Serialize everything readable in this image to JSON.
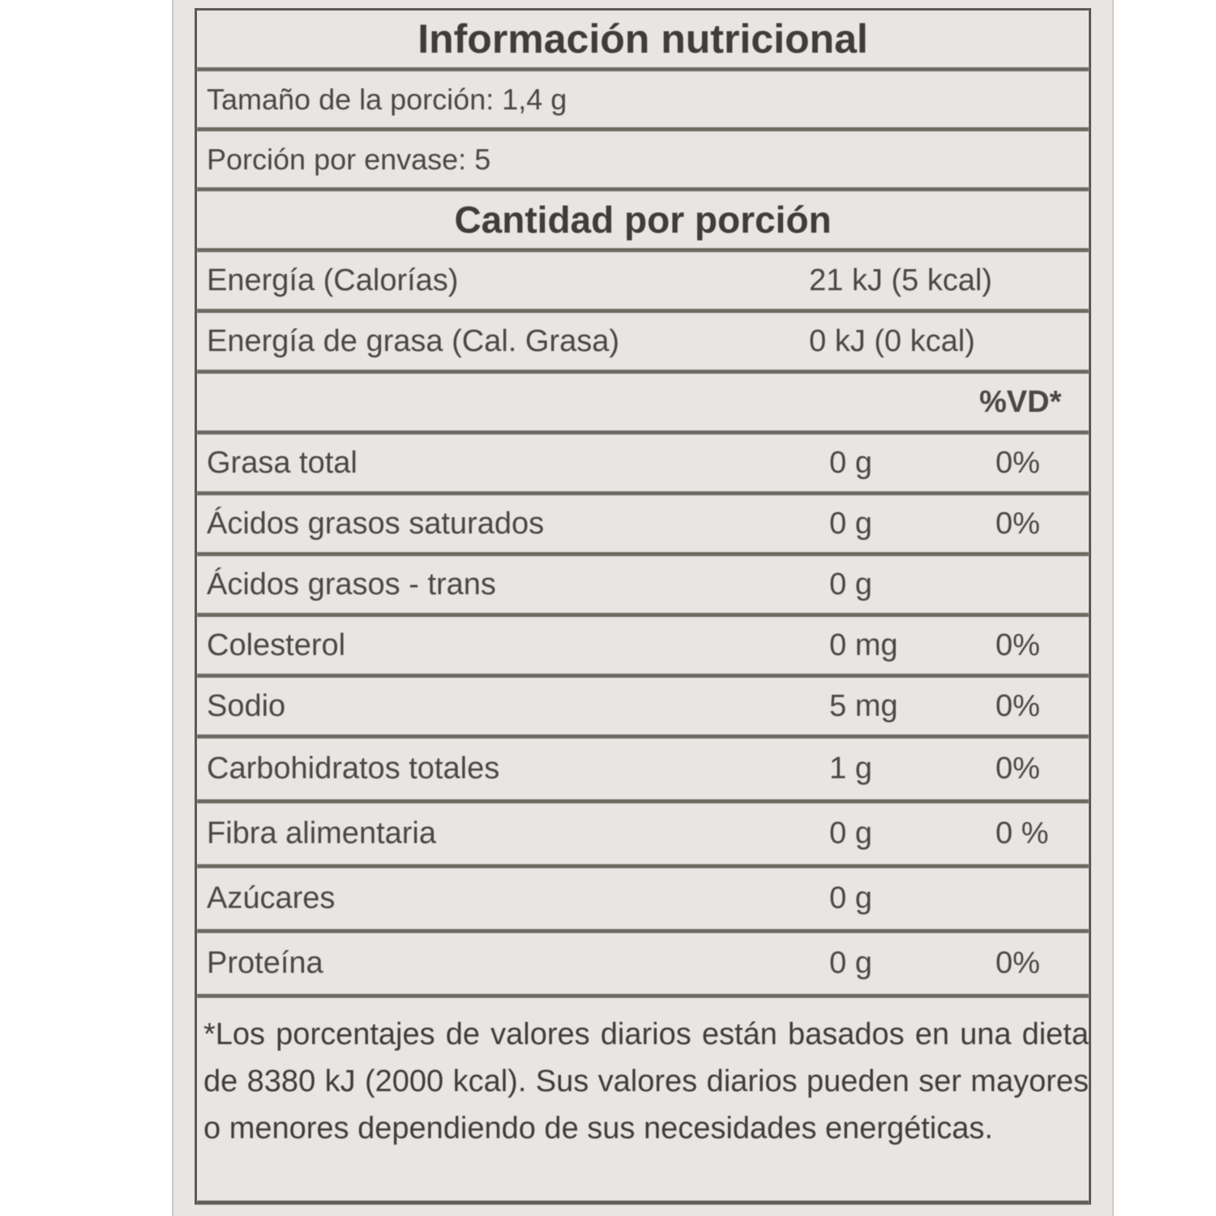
{
  "title": "Información nutricional",
  "serving_size": "Tamaño de la porción: 1,4 g",
  "servings_per_container": "Porción por envase: 5",
  "amount_per_serving": "Cantidad por porción",
  "energy": {
    "label": "Energía (Calorías)",
    "value": "21 kJ (5 kcal)"
  },
  "energy_fat": {
    "label": "Energía de grasa (Cal. Grasa)",
    "value": "0 kJ (0 kcal)"
  },
  "dv_header": "%VD*",
  "nutrients": [
    {
      "name": "Grasa total",
      "amount": "0 g",
      "dv": "0%"
    },
    {
      "name": "Ácidos grasos saturados",
      "amount": "0 g",
      "dv": "0%"
    },
    {
      "name": "Ácidos grasos - trans",
      "amount": "0 g",
      "dv": ""
    },
    {
      "name": "Colesterol",
      "amount": "0 mg",
      "dv": "0%"
    },
    {
      "name": "Sodio",
      "amount": "5 mg",
      "dv": "0%"
    },
    {
      "name": "Carbohidratos totales",
      "amount": "1 g",
      "dv": "0%"
    },
    {
      "name": "Fibra alimentaria",
      "amount": "0 g",
      "dv": "0 %"
    },
    {
      "name": "Azúcares",
      "amount": "0 g",
      "dv": ""
    },
    {
      "name": "Proteína",
      "amount": "0 g",
      "dv": "0%"
    }
  ],
  "footnote": "*Los porcentajes de valores diarios están basados en una dieta de 8380 kJ (2000 kcal). Sus valores diarios pueden ser mayores o menores dependiendo de sus necesidades energéticas."
}
